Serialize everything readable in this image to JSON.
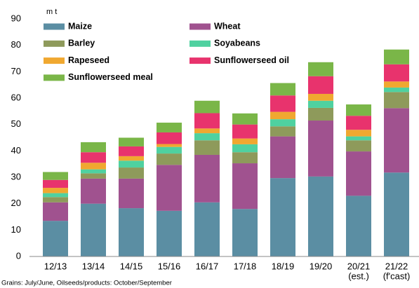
{
  "chart_data": {
    "type": "stacked_bar",
    "y_axis_label": "m t",
    "footnote": "Grains: July/June, Oilseeds/products: October/September",
    "categories": [
      [
        "12/13"
      ],
      [
        "13/14"
      ],
      [
        "14/15"
      ],
      [
        "15/16"
      ],
      [
        "16/17"
      ],
      [
        "17/18"
      ],
      [
        "18/19"
      ],
      [
        "19/20"
      ],
      [
        "20/21",
        "(est.)"
      ],
      [
        "21/22",
        "(f'cast)"
      ]
    ],
    "series": [
      {
        "name": "Maize",
        "color": "#5b8ea3",
        "values": [
          13.5,
          20,
          18.3,
          17.3,
          20.5,
          18,
          29.7,
          30.3,
          23,
          31.8
        ]
      },
      {
        "name": "Wheat",
        "color": "#a0528f",
        "values": [
          7,
          9.5,
          11.2,
          17.4,
          18,
          17.3,
          15.8,
          21.2,
          16.8,
          24.4
        ]
      },
      {
        "name": "Barley",
        "color": "#8e9a5b",
        "values": [
          2,
          2,
          4.2,
          4.3,
          5.5,
          4.2,
          3.8,
          4.8,
          4.2,
          6.1
        ]
      },
      {
        "name": "Soyabeans",
        "color": "#4fd1a0",
        "values": [
          1.5,
          1.5,
          2.6,
          2.5,
          2.7,
          3,
          2.7,
          2.7,
          1.5,
          1.7
        ]
      },
      {
        "name": "Rapeseed",
        "color": "#f0a830",
        "values": [
          2,
          2.5,
          1.7,
          1.1,
          1.8,
          2.2,
          2.8,
          2.6,
          2.5,
          2.3
        ]
      },
      {
        "name": "Sunflowerseed oil",
        "color": "#e8336d",
        "values": [
          3,
          4,
          3.7,
          4.4,
          5.8,
          5.3,
          6.2,
          6.7,
          5.3,
          6.5
        ]
      },
      {
        "name": "Sunflowerseed meal",
        "color": "#7ab648",
        "values": [
          3,
          3.8,
          3.3,
          3.7,
          4.7,
          4.2,
          4.7,
          5.3,
          4.3,
          5.6
        ]
      }
    ],
    "ylim": [
      0,
      90
    ],
    "yticks": [
      0,
      10,
      20,
      30,
      40,
      50,
      60,
      70,
      80,
      90
    ],
    "grid": false
  }
}
